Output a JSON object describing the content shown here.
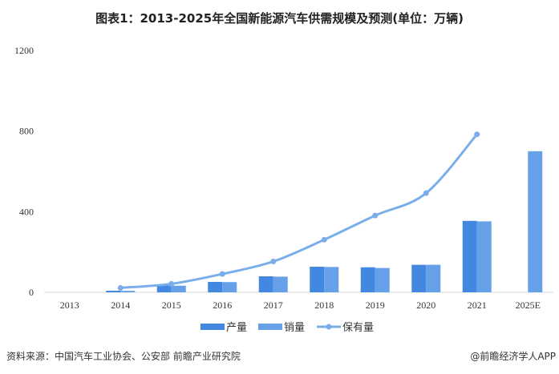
{
  "chart_data": {
    "type": "bar",
    "title": "图表1：2013-2025年全国新能源汽车供需规模及预测(单位：万辆)",
    "categories": [
      "2013",
      "2014",
      "2015",
      "2016",
      "2017",
      "2018",
      "2019",
      "2020",
      "2021",
      "2025E"
    ],
    "ylim": [
      0,
      1200
    ],
    "yticks": [
      0,
      400,
      800,
      1200
    ],
    "grid": false,
    "legend": "bottom",
    "series": [
      {
        "name": "产量",
        "type": "bar",
        "color": "#4287e0",
        "values": [
          null,
          7.85,
          34,
          51.7,
          79.4,
          127,
          124.2,
          136.6,
          354.5,
          null
        ]
      },
      {
        "name": "销量",
        "type": "bar",
        "color": "#66a0e8",
        "values": [
          null,
          7.48,
          33,
          50.7,
          77.7,
          125.6,
          120.6,
          136.7,
          352.1,
          700
        ]
      },
      {
        "name": "保有量",
        "type": "line",
        "color": "#7aaeea",
        "values": [
          null,
          22,
          42,
          91,
          153,
          261,
          381,
          492,
          784,
          null
        ]
      }
    ]
  },
  "footer": {
    "source": "资料来源：中国汽车工业协会、公安部 前瞻产业研究院",
    "brand": "@前瞻经济学人APP"
  }
}
